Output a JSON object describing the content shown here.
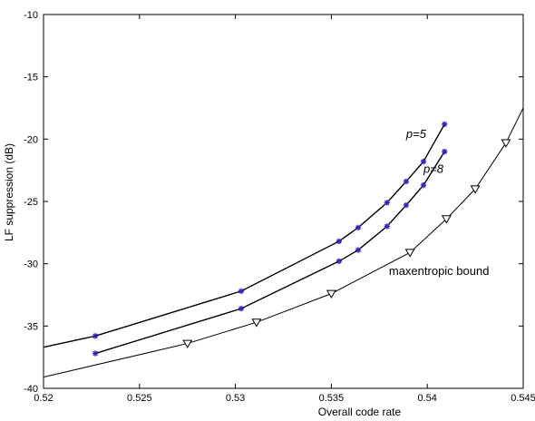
{
  "chart_data": {
    "type": "line",
    "title": "",
    "xlabel": "Overall code rate",
    "ylabel": "LF suppression (dB)",
    "xlim": [
      0.52,
      0.545
    ],
    "ylim": [
      -40,
      -10
    ],
    "xticks": [
      0.52,
      0.525,
      0.53,
      0.535,
      0.54,
      0.545
    ],
    "yticks": [
      -40,
      -35,
      -30,
      -25,
      -20,
      -15,
      -10
    ],
    "xtick_labels": [
      "0.52",
      "0.525",
      "0.53",
      "0.535",
      "0.54",
      "0.545"
    ],
    "ytick_labels": [
      "-40",
      "-35",
      "-30",
      "-25",
      "-20",
      "-15",
      "-10"
    ],
    "grid": false,
    "legend": "none",
    "series": [
      {
        "name": "p=5",
        "marker": "asterisk",
        "color": "#000000",
        "marker_color": "#3a1fb0",
        "lead_in": [
          0.52,
          -36.7
        ],
        "x": [
          0.5227,
          0.5303,
          0.5354,
          0.5364,
          0.5379,
          0.5389,
          0.5398,
          0.5409
        ],
        "y": [
          -35.8,
          -32.2,
          -28.2,
          -27.1,
          -25.1,
          -23.4,
          -21.8,
          -18.8
        ]
      },
      {
        "name": "p=8",
        "marker": "asterisk",
        "color": "#000000",
        "marker_color": "#3a1fb0",
        "x": [
          0.5227,
          0.5303,
          0.5354,
          0.5364,
          0.5379,
          0.5389,
          0.5398,
          0.5409
        ],
        "y": [
          -37.2,
          -33.6,
          -29.8,
          -28.9,
          -27.0,
          -25.3,
          -23.7,
          -21.0
        ]
      },
      {
        "name": "maxentropic bound",
        "marker": "triangle-down",
        "color": "#000000",
        "marker_color": "#000000",
        "lead_in": [
          0.52,
          -39.1
        ],
        "lead_out": [
          0.545,
          -17.5
        ],
        "x": [
          0.5275,
          0.5311,
          0.535,
          0.5391,
          0.541,
          0.5425,
          0.5441
        ],
        "y": [
          -36.4,
          -34.7,
          -32.4,
          -29.1,
          -26.4,
          -24.0,
          -20.3
        ]
      }
    ],
    "annotations": [
      {
        "text": "p=5",
        "x": 0.5389,
        "y": -19.9,
        "italic": true
      },
      {
        "text": "p=8",
        "x": 0.5398,
        "y": -22.7,
        "italic": true
      },
      {
        "text": "maxentropic bound",
        "x": 0.538,
        "y": -30.9,
        "italic": false
      }
    ]
  }
}
